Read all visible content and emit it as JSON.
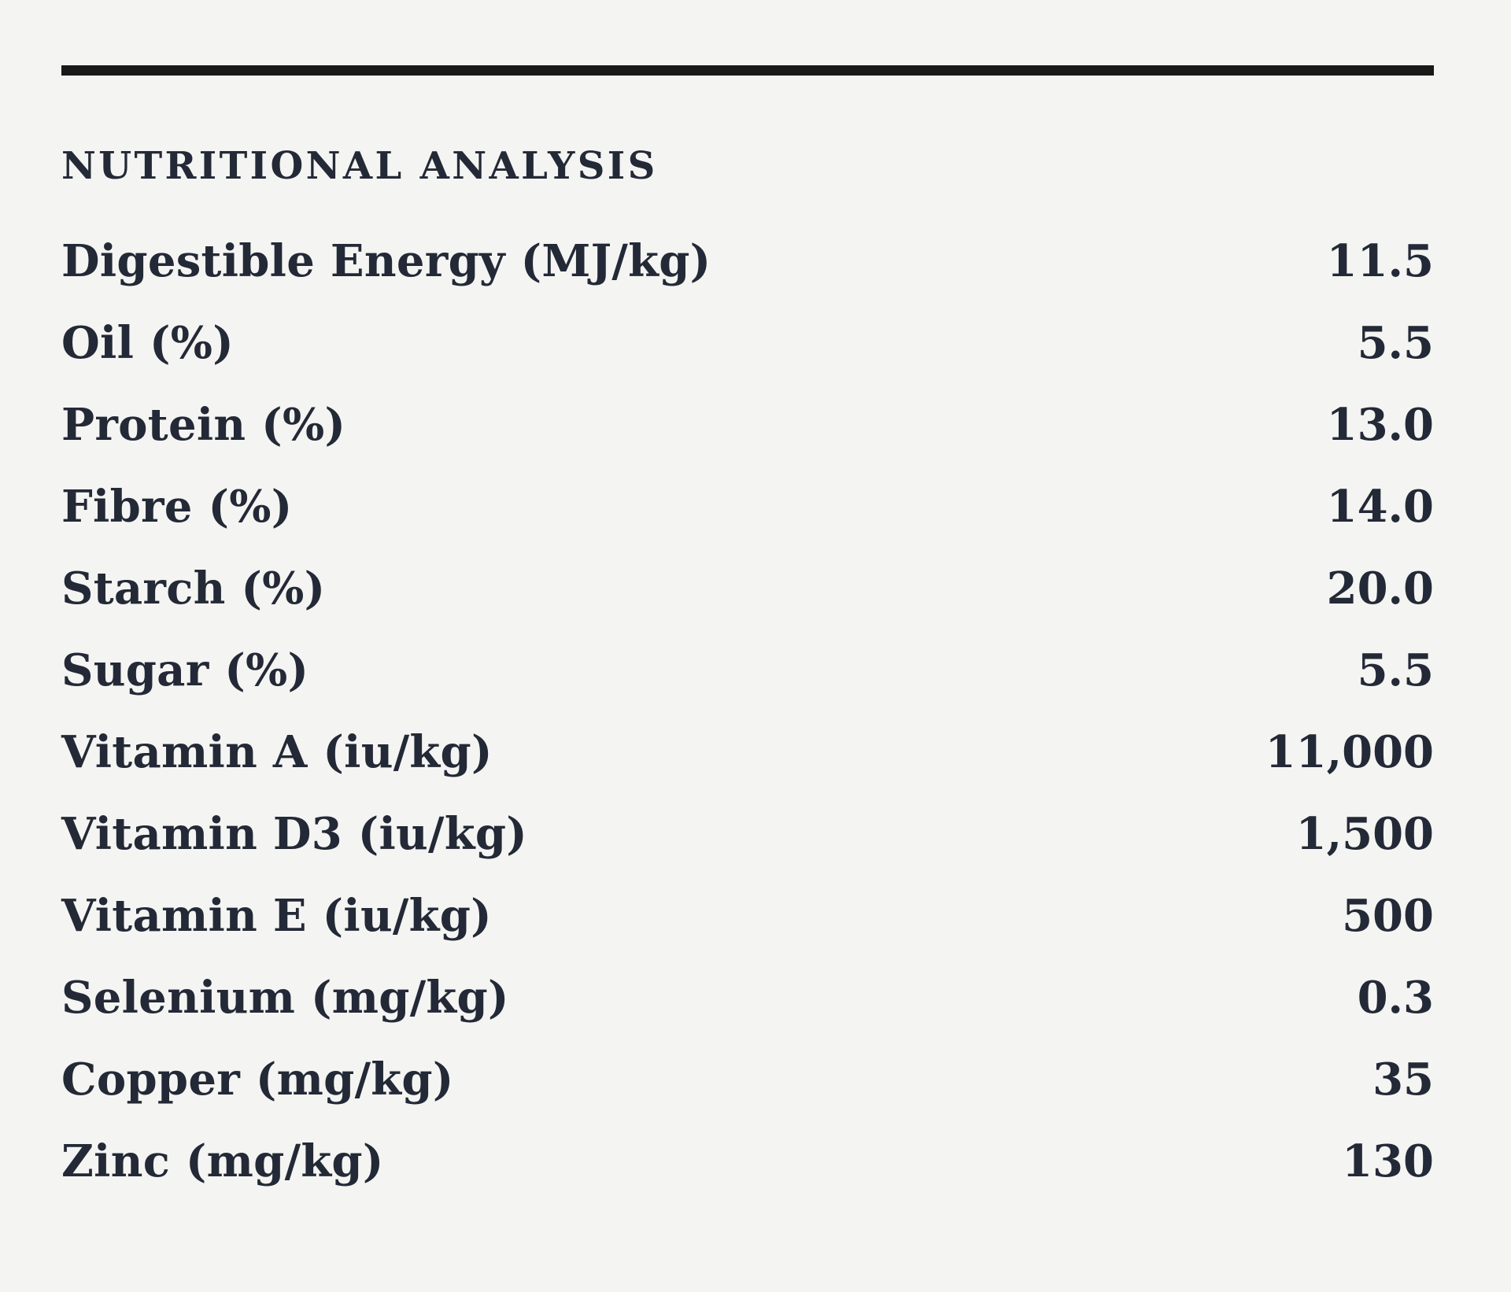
{
  "page": {
    "background_color": "#f4f4f2",
    "text_color": "#232936",
    "rule_color": "#191919"
  },
  "section": {
    "heading": "NUTRITIONAL ANALYSIS",
    "rows": [
      {
        "label": "Digestible Energy (MJ/kg)",
        "value": "11.5"
      },
      {
        "label": "Oil (%)",
        "value": "5.5"
      },
      {
        "label": "Protein (%)",
        "value": "13.0"
      },
      {
        "label": "Fibre (%)",
        "value": "14.0"
      },
      {
        "label": "Starch (%)",
        "value": "20.0"
      },
      {
        "label": "Sugar (%)",
        "value": "5.5"
      },
      {
        "label": "Vitamin A (iu/kg)",
        "value": "11,000"
      },
      {
        "label": "Vitamin D3 (iu/kg)",
        "value": "1,500"
      },
      {
        "label": "Vitamin E (iu/kg)",
        "value": "500"
      },
      {
        "label": "Selenium (mg/kg)",
        "value": "0.3"
      },
      {
        "label": "Copper (mg/kg)",
        "value": "35"
      },
      {
        "label": "Zinc (mg/kg)",
        "value": "130"
      }
    ]
  }
}
